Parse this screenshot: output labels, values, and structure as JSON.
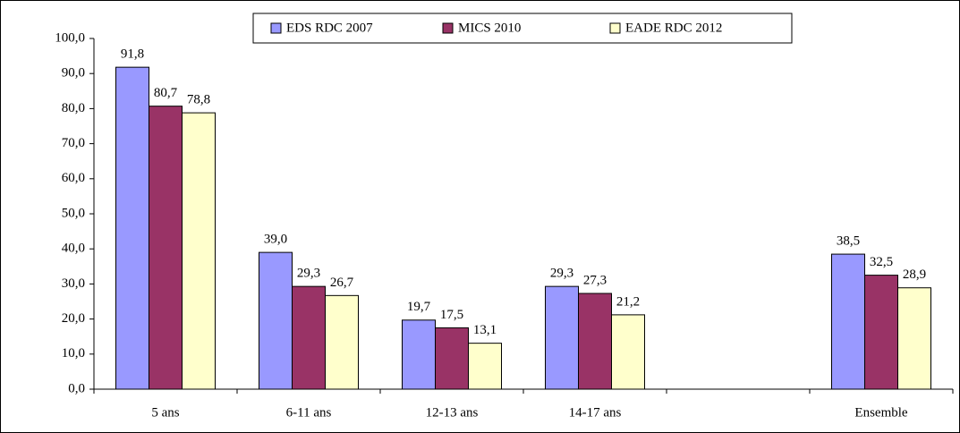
{
  "chart_data": {
    "type": "bar",
    "categories": [
      "5 ans",
      "6-11 ans",
      "12-13 ans",
      "14-17 ans",
      null,
      "Ensemble"
    ],
    "series": [
      {
        "name": "EDS RDC 2007",
        "color": "#9999ff",
        "values": [
          91.8,
          39.0,
          19.7,
          29.3,
          null,
          38.5
        ],
        "value_labels": [
          "91,8",
          "39,0",
          "19,7",
          "29,3",
          null,
          "38,5"
        ]
      },
      {
        "name": "MICS 2010",
        "color": "#993366",
        "values": [
          80.7,
          29.3,
          17.5,
          27.3,
          null,
          32.5
        ],
        "value_labels": [
          "80,7",
          "29,3",
          "17,5",
          "27,3",
          null,
          "32,5"
        ]
      },
      {
        "name": "EADE RDC 2012",
        "color": "#ffffcc",
        "values": [
          78.8,
          26.7,
          13.1,
          21.2,
          null,
          28.9
        ],
        "value_labels": [
          "78,8",
          "26,7",
          "13,1",
          "21,2",
          null,
          "28,9"
        ]
      }
    ],
    "ylim": [
      0,
      100
    ],
    "yticks": [
      {
        "value": 0,
        "label": "0,0"
      },
      {
        "value": 10,
        "label": "10,0"
      },
      {
        "value": 20,
        "label": "20,0"
      },
      {
        "value": 30,
        "label": "30,0"
      },
      {
        "value": 40,
        "label": "40,0"
      },
      {
        "value": 50,
        "label": "50,0"
      },
      {
        "value": 60,
        "label": "60,0"
      },
      {
        "value": 70,
        "label": "70,0"
      },
      {
        "value": 80,
        "label": "80,0"
      },
      {
        "value": 90,
        "label": "90,0"
      },
      {
        "value": 100,
        "label": "100,0"
      }
    ],
    "legend": "top"
  }
}
